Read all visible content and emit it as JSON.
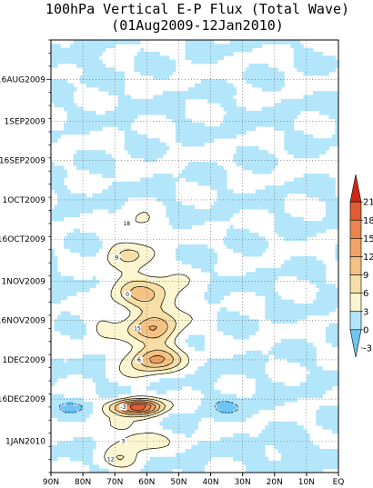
{
  "chart_data": {
    "type": "heatmap",
    "title": "100hPa Vertical E-P Flux (Total Wave)",
    "subtitle": "(01Aug2009-12Jan2010)",
    "xlabel": "",
    "ylabel": "",
    "x_ticks": [
      "90N",
      "80N",
      "70N",
      "60N",
      "50N",
      "40N",
      "30N",
      "20N",
      "10N",
      "EQ"
    ],
    "x_values": [
      90,
      80,
      70,
      60,
      50,
      40,
      30,
      20,
      10,
      0
    ],
    "xlim": [
      90,
      0
    ],
    "y_ticks": [
      "16AUG2009",
      "1SEP2009",
      "16SEP2009",
      "1OCT2009",
      "16OCT2009",
      "1NOV2009",
      "16NOV2009",
      "1DEC2009",
      "16DEC2009",
      "1JAN2010"
    ],
    "y_days": [
      15,
      31,
      46,
      61,
      76,
      92,
      107,
      122,
      137,
      153
    ],
    "ylim_days": [
      0,
      165
    ],
    "date_range": [
      "01Aug2009",
      "12Jan2010"
    ],
    "grid": true,
    "colorbar": {
      "levels": [
        -3,
        0,
        3,
        6,
        9,
        12,
        15,
        18,
        21
      ],
      "colors": [
        "#6fc4f1",
        "#b3e6fb",
        "#fbf6d0",
        "#f7dea4",
        "#f4c283",
        "#f0a465",
        "#eb844d",
        "#e05c32",
        "#cc2a12"
      ],
      "placement": "right"
    },
    "features": [
      {
        "lat": 63,
        "day": 140,
        "value": 20,
        "rlat": 8,
        "rday": 3.0
      },
      {
        "lat": 58,
        "day": 122,
        "value": 13,
        "rlat": 8,
        "rday": 5
      },
      {
        "lat": 58,
        "day": 110,
        "value": 11,
        "rlat": 9,
        "rday": 6
      },
      {
        "lat": 60,
        "day": 97,
        "value": 9,
        "rlat": 11,
        "rday": 7
      },
      {
        "lat": 65,
        "day": 83,
        "value": 6,
        "rlat": 8,
        "rday": 6
      },
      {
        "lat": 63,
        "day": 70,
        "value": 4,
        "rlat": 6,
        "rday": 4
      },
      {
        "lat": 63,
        "day": 153,
        "value": 6,
        "rlat": 8,
        "rday": 4
      },
      {
        "lat": 68,
        "day": 160,
        "value": 4,
        "rlat": 6,
        "rday": 4
      },
      {
        "lat": 68,
        "day": 147,
        "value": 4,
        "rlat": 5,
        "rday": 3
      },
      {
        "lat": 82,
        "day": 140,
        "value": -3,
        "rlat": 6,
        "rday": 2
      },
      {
        "lat": 80,
        "day": 7,
        "value": -2,
        "rlat": 6,
        "rday": 3
      },
      {
        "lat": 25,
        "day": 30,
        "value": -1,
        "rlat": 8,
        "rday": 3
      },
      {
        "lat": 35,
        "day": 140,
        "value": -2,
        "rlat": 10,
        "rday": 4
      },
      {
        "lat": 15,
        "day": 158,
        "value": -2,
        "rlat": 12,
        "rday": 5
      },
      {
        "lat": 75,
        "day": 110,
        "value": 3,
        "rlat": 5,
        "rday": 5
      }
    ],
    "contour_labels": [
      "-3",
      "0",
      "3",
      "6",
      "9",
      "12",
      "15",
      "18"
    ]
  }
}
